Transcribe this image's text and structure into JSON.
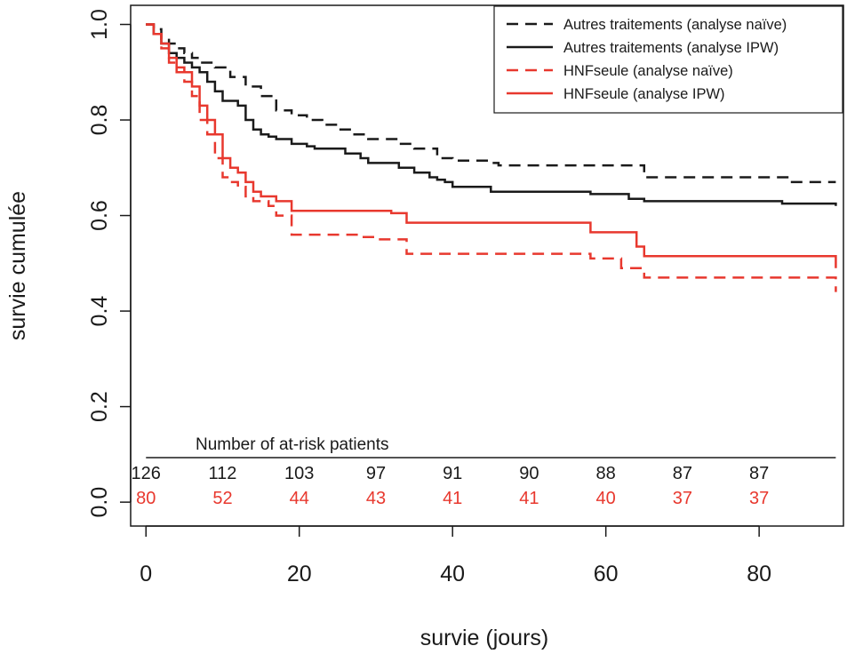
{
  "chart_data": {
    "type": "line",
    "xlabel": "survie (jours)",
    "ylabel": "survie cumulée",
    "xlim": [
      -2,
      91
    ],
    "ylim": [
      -0.05,
      1.04
    ],
    "x_ticks": [
      {
        "value": 0,
        "label": "0"
      },
      {
        "value": 20,
        "label": "20"
      },
      {
        "value": 40,
        "label": "40"
      },
      {
        "value": 60,
        "label": "60"
      },
      {
        "value": 80,
        "label": "80"
      }
    ],
    "y_ticks": [
      {
        "value": 0.0,
        "label": "0.0"
      },
      {
        "value": 0.2,
        "label": "0.2"
      },
      {
        "value": 0.4,
        "label": "0.4"
      },
      {
        "value": 0.6,
        "label": "0.6"
      },
      {
        "value": 0.8,
        "label": "0.8"
      },
      {
        "value": 1.0,
        "label": "1.0"
      }
    ],
    "legend_position": "top-right",
    "series": [
      {
        "name": "Autres traitements (analyse naïve)",
        "color": "#1a1a1a",
        "dash": "dashed",
        "points": [
          [
            0,
            1.0
          ],
          [
            1,
            0.99
          ],
          [
            2,
            0.97
          ],
          [
            3,
            0.96
          ],
          [
            4,
            0.95
          ],
          [
            5,
            0.94
          ],
          [
            6,
            0.93
          ],
          [
            7,
            0.92
          ],
          [
            9,
            0.91
          ],
          [
            11,
            0.89
          ],
          [
            13,
            0.87
          ],
          [
            15,
            0.85
          ],
          [
            17,
            0.82
          ],
          [
            19,
            0.81
          ],
          [
            21,
            0.8
          ],
          [
            23,
            0.79
          ],
          [
            25,
            0.78
          ],
          [
            27,
            0.77
          ],
          [
            29,
            0.76
          ],
          [
            33,
            0.75
          ],
          [
            35,
            0.74
          ],
          [
            38,
            0.72
          ],
          [
            40,
            0.715
          ],
          [
            45,
            0.71
          ],
          [
            46,
            0.705
          ],
          [
            65,
            0.68
          ],
          [
            80,
            0.68
          ],
          [
            84,
            0.67
          ],
          [
            90,
            0.67
          ]
        ]
      },
      {
        "name": "Autres traitements (analyse IPW)",
        "color": "#1a1a1a",
        "dash": "solid",
        "points": [
          [
            0,
            1.0
          ],
          [
            1,
            0.98
          ],
          [
            2,
            0.96
          ],
          [
            3,
            0.94
          ],
          [
            4,
            0.93
          ],
          [
            5,
            0.92
          ],
          [
            6,
            0.91
          ],
          [
            7,
            0.9
          ],
          [
            8,
            0.88
          ],
          [
            9,
            0.86
          ],
          [
            10,
            0.84
          ],
          [
            12,
            0.83
          ],
          [
            13,
            0.8
          ],
          [
            14,
            0.78
          ],
          [
            15,
            0.77
          ],
          [
            16,
            0.765
          ],
          [
            17,
            0.76
          ],
          [
            19,
            0.75
          ],
          [
            21,
            0.745
          ],
          [
            22,
            0.74
          ],
          [
            26,
            0.73
          ],
          [
            28,
            0.72
          ],
          [
            29,
            0.71
          ],
          [
            33,
            0.7
          ],
          [
            35,
            0.69
          ],
          [
            37,
            0.68
          ],
          [
            38,
            0.675
          ],
          [
            39,
            0.67
          ],
          [
            40,
            0.66
          ],
          [
            45,
            0.65
          ],
          [
            58,
            0.645
          ],
          [
            63,
            0.635
          ],
          [
            65,
            0.63
          ],
          [
            83,
            0.625
          ],
          [
            90,
            0.62
          ]
        ]
      },
      {
        "name": "HNFseule (analyse naïve)",
        "color": "#e8382e",
        "dash": "dashed",
        "points": [
          [
            0,
            1.0
          ],
          [
            1,
            0.98
          ],
          [
            2,
            0.95
          ],
          [
            3,
            0.92
          ],
          [
            4,
            0.9
          ],
          [
            5,
            0.88
          ],
          [
            6,
            0.85
          ],
          [
            7,
            0.8
          ],
          [
            8,
            0.77
          ],
          [
            9,
            0.72
          ],
          [
            10,
            0.68
          ],
          [
            11,
            0.67
          ],
          [
            12,
            0.66
          ],
          [
            13,
            0.64
          ],
          [
            14,
            0.63
          ],
          [
            16,
            0.62
          ],
          [
            17,
            0.6
          ],
          [
            19,
            0.56
          ],
          [
            22,
            0.56
          ],
          [
            28,
            0.555
          ],
          [
            30,
            0.55
          ],
          [
            34,
            0.52
          ],
          [
            40,
            0.52
          ],
          [
            58,
            0.51
          ],
          [
            62,
            0.49
          ],
          [
            65,
            0.47
          ],
          [
            90,
            0.44
          ]
        ]
      },
      {
        "name": "HNFseule (analyse IPW)",
        "color": "#e8382e",
        "dash": "solid",
        "points": [
          [
            0,
            1.0
          ],
          [
            1,
            0.98
          ],
          [
            2,
            0.96
          ],
          [
            3,
            0.93
          ],
          [
            4,
            0.91
          ],
          [
            5,
            0.9
          ],
          [
            6,
            0.87
          ],
          [
            7,
            0.83
          ],
          [
            8,
            0.8
          ],
          [
            9,
            0.77
          ],
          [
            10,
            0.72
          ],
          [
            11,
            0.7
          ],
          [
            12,
            0.69
          ],
          [
            13,
            0.67
          ],
          [
            14,
            0.65
          ],
          [
            15,
            0.64
          ],
          [
            17,
            0.63
          ],
          [
            19,
            0.61
          ],
          [
            25,
            0.61
          ],
          [
            28,
            0.61
          ],
          [
            32,
            0.605
          ],
          [
            34,
            0.585
          ],
          [
            45,
            0.585
          ],
          [
            58,
            0.565
          ],
          [
            64,
            0.535
          ],
          [
            65,
            0.515
          ],
          [
            90,
            0.49
          ]
        ]
      }
    ],
    "risk_table": {
      "title": "Number of at-risk patients",
      "times": [
        0,
        10,
        20,
        30,
        40,
        50,
        60,
        70,
        80
      ],
      "rows": [
        {
          "color": "#1a1a1a",
          "values": [
            "126",
            "112",
            "103",
            "97",
            "91",
            "90",
            "88",
            "87",
            "87"
          ]
        },
        {
          "color": "#e8382e",
          "values": [
            "80",
            "52",
            "44",
            "43",
            "41",
            "41",
            "40",
            "37",
            "37"
          ]
        }
      ]
    }
  }
}
